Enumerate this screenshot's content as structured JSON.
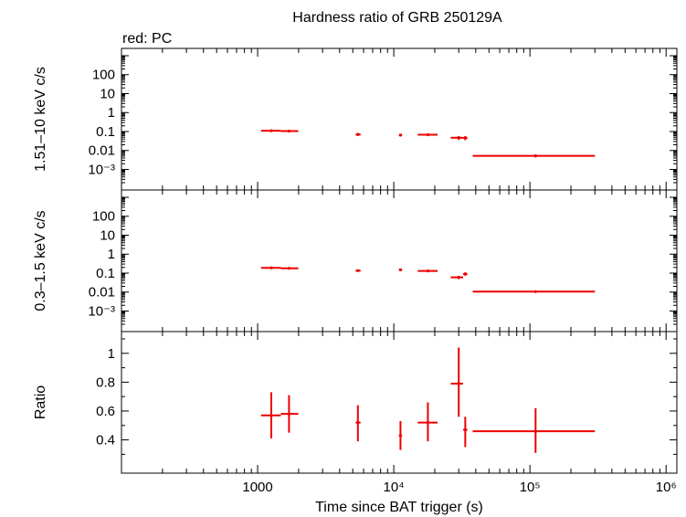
{
  "title": "Hardness ratio of GRB 250129A",
  "legend_label": "red: PC",
  "xlabel": "Time since BAT trigger (s)",
  "colors": {
    "series": "#ee0000",
    "axes": "#000000"
  },
  "chart_data": [
    {
      "type": "scatter",
      "panel": "top",
      "ylabel": "1.51–10 keV c/s",
      "xscale": "log",
      "yscale": "log",
      "xlim": [
        100,
        1200000
      ],
      "ylim": [
        0.0002,
        1000
      ],
      "x_ticklabels": [],
      "y_ticks": [
        {
          "v": 100,
          "label": "100"
        },
        {
          "v": 10,
          "label": "10"
        },
        {
          "v": 1,
          "label": "1"
        },
        {
          "v": 0.1,
          "label": "0.1"
        },
        {
          "v": 0.01,
          "label": "0.01"
        },
        {
          "v": 0.001,
          "label": "10⁻³"
        }
      ],
      "series": [
        {
          "points": [
            {
              "x": 1260,
              "xerr": [
                1060,
                1480
              ],
              "y": 0.11,
              "yerr": [
                0.095,
                0.125
              ]
            },
            {
              "x": 1700,
              "xerr": [
                1480,
                1990
              ],
              "y": 0.105,
              "yerr": [
                0.092,
                0.12
              ]
            },
            {
              "x": 5450,
              "xerr": [
                5250,
                5700
              ],
              "y": 0.07,
              "yerr": [
                0.058,
                0.083
              ]
            },
            {
              "x": 11200,
              "xerr": [
                10900,
                11500
              ],
              "y": 0.065,
              "yerr": [
                0.055,
                0.075
              ]
            },
            {
              "x": 17800,
              "xerr": [
                15000,
                21000
              ],
              "y": 0.068,
              "yerr": [
                0.058,
                0.08
              ]
            },
            {
              "x": 30000,
              "xerr": [
                26200,
                32300
              ],
              "y": 0.047,
              "yerr": [
                0.036,
                0.058
              ]
            },
            {
              "x": 33500,
              "xerr": [
                32300,
                34700
              ],
              "y": 0.046,
              "yerr": [
                0.035,
                0.058
              ]
            },
            {
              "x": 110000,
              "xerr": [
                38000,
                300000
              ],
              "y": 0.0052,
              "yerr": [
                0.0043,
                0.0062
              ]
            }
          ]
        }
      ]
    },
    {
      "type": "scatter",
      "panel": "middle",
      "ylabel": "0.3–1.5 keV c/s",
      "xscale": "log",
      "yscale": "log",
      "xlim": [
        100,
        1200000
      ],
      "ylim": [
        0.0002,
        1000
      ],
      "x_ticklabels": [],
      "y_ticks": [
        {
          "v": 100,
          "label": "100"
        },
        {
          "v": 10,
          "label": "10"
        },
        {
          "v": 1,
          "label": "1"
        },
        {
          "v": 0.1,
          "label": "0.1"
        },
        {
          "v": 0.01,
          "label": "0.01"
        },
        {
          "v": 0.001,
          "label": "10⁻³"
        }
      ],
      "series": [
        {
          "points": [
            {
              "x": 1260,
              "xerr": [
                1060,
                1480
              ],
              "y": 0.19,
              "yerr": [
                0.17,
                0.215
              ]
            },
            {
              "x": 1700,
              "xerr": [
                1480,
                1990
              ],
              "y": 0.18,
              "yerr": [
                0.16,
                0.2
              ]
            },
            {
              "x": 5450,
              "xerr": [
                5250,
                5700
              ],
              "y": 0.135,
              "yerr": [
                0.118,
                0.152
              ]
            },
            {
              "x": 11200,
              "xerr": [
                10900,
                11500
              ],
              "y": 0.15,
              "yerr": [
                0.13,
                0.17
              ]
            },
            {
              "x": 17800,
              "xerr": [
                15000,
                21000
              ],
              "y": 0.13,
              "yerr": [
                0.115,
                0.148
              ]
            },
            {
              "x": 30000,
              "xerr": [
                26200,
                32300
              ],
              "y": 0.06,
              "yerr": [
                0.048,
                0.072
              ]
            },
            {
              "x": 33500,
              "xerr": [
                32300,
                34700
              ],
              "y": 0.09,
              "yerr": [
                0.072,
                0.11
              ]
            },
            {
              "x": 110000,
              "xerr": [
                38000,
                300000
              ],
              "y": 0.0105,
              "yerr": [
                0.0092,
                0.0118
              ]
            }
          ]
        }
      ]
    },
    {
      "type": "scatter",
      "panel": "bottom",
      "ylabel": "Ratio",
      "xscale": "log",
      "yscale": "linear",
      "xlim": [
        100,
        1200000
      ],
      "ylim": [
        0.22,
        1.1
      ],
      "x_ticklabels": [
        {
          "v": 1000,
          "label": "1000"
        },
        {
          "v": 10000,
          "label": "10⁴"
        },
        {
          "v": 100000,
          "label": "10⁵"
        },
        {
          "v": 1000000,
          "label": "10⁶"
        }
      ],
      "y_ticks": [
        {
          "v": 1,
          "label": "1"
        },
        {
          "v": 0.8,
          "label": "0.8"
        },
        {
          "v": 0.6,
          "label": "0.6"
        },
        {
          "v": 0.4,
          "label": "0.4"
        }
      ],
      "series": [
        {
          "points": [
            {
              "x": 1260,
              "xerr": [
                1060,
                1480
              ],
              "y": 0.57,
              "yerr": [
                0.41,
                0.73
              ]
            },
            {
              "x": 1700,
              "xerr": [
                1480,
                1990
              ],
              "y": 0.58,
              "yerr": [
                0.45,
                0.71
              ]
            },
            {
              "x": 5450,
              "xerr": [
                5250,
                5700
              ],
              "y": 0.52,
              "yerr": [
                0.39,
                0.64
              ]
            },
            {
              "x": 11200,
              "xerr": [
                10900,
                11500
              ],
              "y": 0.43,
              "yerr": [
                0.33,
                0.53
              ]
            },
            {
              "x": 17800,
              "xerr": [
                15000,
                21000
              ],
              "y": 0.52,
              "yerr": [
                0.39,
                0.66
              ]
            },
            {
              "x": 30000,
              "xerr": [
                26200,
                32300
              ],
              "y": 0.79,
              "yerr": [
                0.56,
                1.04
              ]
            },
            {
              "x": 33500,
              "xerr": [
                32300,
                34700
              ],
              "y": 0.47,
              "yerr": [
                0.35,
                0.56
              ]
            },
            {
              "x": 110000,
              "xerr": [
                38000,
                300000
              ],
              "y": 0.46,
              "yerr": [
                0.31,
                0.62
              ]
            }
          ]
        }
      ]
    }
  ]
}
